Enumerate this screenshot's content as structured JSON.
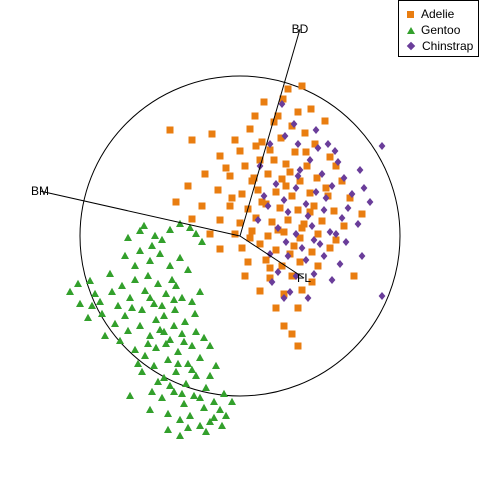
{
  "chart_data": {
    "type": "scatter",
    "title": "",
    "xlabel": "",
    "ylabel": "",
    "xlim": [
      -3.2,
      3.2
    ],
    "ylim": [
      -3.2,
      3.2
    ],
    "grid": false,
    "legend_position": "top-right",
    "unit_circle_radius": 1.6,
    "axes": [
      {
        "label": "BD",
        "x": 0.6,
        "y": 2.07
      },
      {
        "label": "BM",
        "x": -2.0,
        "y": 0.45
      },
      {
        "label": "FL",
        "x": 0.64,
        "y": -0.42
      }
    ],
    "series": [
      {
        "name": "Adelie",
        "color": "#e97d10",
        "marker": "square",
        "points": [
          [
            0.48,
            1.47
          ],
          [
            0.62,
            1.5
          ],
          [
            0.43,
            1.37
          ],
          [
            0.24,
            1.34
          ],
          [
            0.38,
            1.2
          ],
          [
            0.58,
            1.24
          ],
          [
            0.71,
            1.27
          ],
          [
            0.34,
            1.14
          ],
          [
            0.52,
            1.1
          ],
          [
            0.85,
            1.15
          ],
          [
            0.65,
            1.03
          ],
          [
            0.15,
            1.2
          ],
          [
            0.1,
            1.07
          ],
          [
            -0.05,
            0.96
          ],
          [
            0.22,
            0.94
          ],
          [
            0.41,
            0.98
          ],
          [
            -0.28,
            1.02
          ],
          [
            -0.48,
            0.96
          ],
          [
            -0.7,
            1.06
          ],
          [
            0.0,
            0.85
          ],
          [
            0.3,
            0.86
          ],
          [
            0.55,
            0.84
          ],
          [
            0.75,
            0.92
          ],
          [
            0.9,
            0.79
          ],
          [
            -0.2,
            0.8
          ],
          [
            0.05,
            0.7
          ],
          [
            0.2,
            0.76
          ],
          [
            0.46,
            0.72
          ],
          [
            0.67,
            0.7
          ],
          [
            0.96,
            0.7
          ],
          [
            -0.35,
            0.62
          ],
          [
            -0.1,
            0.6
          ],
          [
            0.12,
            0.55
          ],
          [
            0.28,
            0.62
          ],
          [
            0.42,
            0.57
          ],
          [
            0.6,
            0.55
          ],
          [
            0.77,
            0.58
          ],
          [
            1.02,
            0.55
          ],
          [
            -0.52,
            0.5
          ],
          [
            -0.22,
            0.46
          ],
          [
            0.02,
            0.42
          ],
          [
            0.18,
            0.46
          ],
          [
            0.36,
            0.44
          ],
          [
            0.52,
            0.4
          ],
          [
            0.7,
            0.43
          ],
          [
            0.88,
            0.4
          ],
          [
            1.1,
            0.38
          ],
          [
            -0.64,
            0.34
          ],
          [
            -0.38,
            0.3
          ],
          [
            -0.1,
            0.3
          ],
          [
            0.08,
            0.27
          ],
          [
            0.26,
            0.32
          ],
          [
            0.4,
            0.28
          ],
          [
            0.58,
            0.26
          ],
          [
            0.74,
            0.3
          ],
          [
            0.94,
            0.25
          ],
          [
            1.22,
            0.22
          ],
          [
            -0.48,
            0.17
          ],
          [
            -0.2,
            0.16
          ],
          [
            0.0,
            0.13
          ],
          [
            0.16,
            0.18
          ],
          [
            0.32,
            0.14
          ],
          [
            0.48,
            0.16
          ],
          [
            0.64,
            0.12
          ],
          [
            0.82,
            0.15
          ],
          [
            1.04,
            0.1
          ],
          [
            -0.3,
            0.02
          ],
          [
            -0.05,
            0.02
          ],
          [
            0.12,
            0.05
          ],
          [
            0.28,
            0.0
          ],
          [
            0.44,
            0.04
          ],
          [
            0.6,
            -0.02
          ],
          [
            0.78,
            0.02
          ],
          [
            0.96,
            -0.04
          ],
          [
            -0.2,
            -0.13
          ],
          [
            0.02,
            -0.12
          ],
          [
            0.2,
            -0.08
          ],
          [
            0.36,
            -0.14
          ],
          [
            0.54,
            -0.1
          ],
          [
            0.72,
            -0.16
          ],
          [
            0.9,
            -0.12
          ],
          [
            0.08,
            -0.26
          ],
          [
            0.26,
            -0.24
          ],
          [
            0.42,
            -0.3
          ],
          [
            0.6,
            -0.26
          ],
          [
            0.78,
            -0.3
          ],
          [
            0.05,
            -0.4
          ],
          [
            0.3,
            -0.42
          ],
          [
            0.52,
            -0.4
          ],
          [
            0.72,
            -0.46
          ],
          [
            1.14,
            -0.4
          ],
          [
            0.2,
            -0.55
          ],
          [
            0.44,
            -0.58
          ],
          [
            0.62,
            -0.54
          ],
          [
            0.36,
            -0.72
          ],
          [
            0.58,
            -0.72
          ],
          [
            0.44,
            -0.9
          ],
          [
            0.58,
            -1.1
          ],
          [
            0.52,
            -0.98
          ],
          [
            -0.08,
            0.38
          ],
          [
            0.14,
            0.58
          ],
          [
            0.34,
            0.76
          ],
          [
            0.5,
            0.64
          ],
          [
            0.66,
            0.84
          ],
          [
            0.22,
            0.34
          ],
          [
            0.46,
            0.5
          ],
          [
            0.7,
            0.24
          ],
          [
            0.86,
            0.48
          ],
          [
            0.1,
            -0.02
          ],
          [
            0.38,
            0.06
          ],
          [
            0.62,
            0.08
          ],
          [
            0.3,
            -0.32
          ],
          [
            0.5,
            -0.18
          ],
          [
            0.16,
            0.9
          ],
          [
            -0.14,
            0.68
          ]
        ]
      },
      {
        "name": "Gentoo",
        "color": "#33a02c",
        "marker": "triangle",
        "points": [
          [
            -1.12,
            -0.02
          ],
          [
            -1.0,
            0.05
          ],
          [
            -0.85,
            0.0
          ],
          [
            -0.6,
            0.12
          ],
          [
            -0.5,
            0.08
          ],
          [
            -0.44,
            0.02
          ],
          [
            -0.38,
            -0.06
          ],
          [
            -1.15,
            -0.2
          ],
          [
            -1.0,
            -0.15
          ],
          [
            -0.9,
            -0.25
          ],
          [
            -0.8,
            -0.18
          ],
          [
            -0.7,
            -0.3
          ],
          [
            -0.6,
            -0.22
          ],
          [
            -0.52,
            -0.34
          ],
          [
            -1.5,
            -0.45
          ],
          [
            -1.3,
            -0.38
          ],
          [
            -1.18,
            -0.5
          ],
          [
            -1.05,
            -0.44
          ],
          [
            -0.95,
            -0.55
          ],
          [
            -0.82,
            -0.48
          ],
          [
            -0.74,
            -0.58
          ],
          [
            -0.64,
            -0.5
          ],
          [
            -1.4,
            -0.66
          ],
          [
            -1.22,
            -0.7
          ],
          [
            -1.1,
            -0.62
          ],
          [
            -0.98,
            -0.74
          ],
          [
            -0.86,
            -0.68
          ],
          [
            -0.76,
            -0.8
          ],
          [
            -0.65,
            -0.74
          ],
          [
            -0.55,
            -0.86
          ],
          [
            -0.45,
            -0.78
          ],
          [
            -1.25,
            -0.88
          ],
          [
            -1.12,
            -0.95
          ],
          [
            -1.0,
            -0.9
          ],
          [
            -0.9,
            -1.0
          ],
          [
            -0.8,
            -0.94
          ],
          [
            -0.7,
            -1.04
          ],
          [
            -0.58,
            -0.98
          ],
          [
            -0.48,
            -1.1
          ],
          [
            -0.36,
            -1.02
          ],
          [
            -1.05,
            -1.14
          ],
          [
            -0.95,
            -1.2
          ],
          [
            -0.84,
            -1.12
          ],
          [
            -0.72,
            -1.24
          ],
          [
            -0.62,
            -1.16
          ],
          [
            -0.52,
            -1.28
          ],
          [
            -0.4,
            -1.22
          ],
          [
            -0.3,
            -1.1
          ],
          [
            -0.98,
            -1.36
          ],
          [
            -0.86,
            -1.3
          ],
          [
            -0.76,
            -1.42
          ],
          [
            -0.64,
            -1.36
          ],
          [
            -0.54,
            -1.48
          ],
          [
            -0.44,
            -1.4
          ],
          [
            -0.34,
            -1.52
          ],
          [
            -0.24,
            -1.3
          ],
          [
            -0.88,
            -1.56
          ],
          [
            -0.78,
            -1.62
          ],
          [
            -0.66,
            -1.56
          ],
          [
            -0.56,
            -1.68
          ],
          [
            -0.46,
            -1.6
          ],
          [
            -0.36,
            -1.72
          ],
          [
            -0.26,
            -1.66
          ],
          [
            -0.16,
            -1.58
          ],
          [
            -0.72,
            -1.78
          ],
          [
            -0.6,
            -1.84
          ],
          [
            -0.5,
            -1.8
          ],
          [
            -0.4,
            -1.9
          ],
          [
            -0.3,
            -1.86
          ],
          [
            -1.35,
            -1.0
          ],
          [
            -1.05,
            -0.3
          ],
          [
            -0.92,
            -0.4
          ],
          [
            -0.68,
            -0.44
          ],
          [
            -0.58,
            -0.62
          ],
          [
            -0.48,
            -0.66
          ],
          [
            -1.28,
            -0.56
          ],
          [
            -1.15,
            -0.8
          ],
          [
            -1.45,
            -0.58
          ],
          [
            -0.4,
            -0.56
          ],
          [
            -0.84,
            -0.84
          ],
          [
            -0.76,
            -0.96
          ],
          [
            -0.66,
            -0.9
          ],
          [
            -0.56,
            -1.06
          ],
          [
            -0.92,
            -1.08
          ],
          [
            -0.74,
            -1.08
          ],
          [
            -0.44,
            -0.96
          ],
          [
            -0.62,
            -1.28
          ],
          [
            -0.48,
            -1.34
          ],
          [
            -0.3,
            -1.4
          ],
          [
            -0.82,
            -1.46
          ],
          [
            -0.7,
            -1.5
          ],
          [
            -0.58,
            -1.58
          ],
          [
            -0.4,
            -1.62
          ],
          [
            -0.2,
            -1.74
          ],
          [
            -0.52,
            -1.92
          ],
          [
            -0.34,
            -1.96
          ],
          [
            -0.14,
            -1.8
          ],
          [
            -1.02,
            -1.28
          ],
          [
            -1.2,
            -1.05
          ],
          [
            -1.08,
            -0.72
          ],
          [
            -0.9,
            -0.62
          ],
          [
            -0.78,
            -0.7
          ],
          [
            -0.66,
            -0.64
          ],
          [
            -1.62,
            -0.48
          ],
          [
            -1.7,
            -0.56
          ],
          [
            -0.96,
            0.1
          ],
          [
            -0.88,
            -0.1
          ],
          [
            -0.78,
            -0.04
          ],
          [
            -0.7,
            0.06
          ],
          [
            -1.6,
            -0.68
          ],
          [
            -1.52,
            -0.82
          ],
          [
            -1.38,
            -0.78
          ],
          [
            -1.48,
            -0.7
          ],
          [
            -0.9,
            -1.74
          ],
          [
            -1.1,
            -1.6
          ],
          [
            -0.26,
            -1.82
          ],
          [
            -0.18,
            -1.9
          ],
          [
            -0.08,
            -1.66
          ],
          [
            -0.6,
            -2.0
          ],
          [
            -0.72,
            -1.94
          ]
        ]
      },
      {
        "name": "Chinstrap",
        "color": "#6a3d9a",
        "marker": "diamond",
        "points": [
          [
            0.42,
            1.32
          ],
          [
            0.45,
            1.0
          ],
          [
            0.3,
            0.92
          ],
          [
            0.78,
            0.88
          ],
          [
            0.95,
            0.85
          ],
          [
            1.42,
            0.9
          ],
          [
            0.2,
            0.7
          ],
          [
            0.6,
            0.66
          ],
          [
            0.82,
            0.62
          ],
          [
            1.04,
            0.58
          ],
          [
            1.2,
            0.66
          ],
          [
            0.36,
            0.52
          ],
          [
            0.56,
            0.48
          ],
          [
            0.76,
            0.44
          ],
          [
            0.92,
            0.5
          ],
          [
            1.12,
            0.42
          ],
          [
            1.3,
            0.34
          ],
          [
            0.28,
            0.3
          ],
          [
            0.48,
            0.24
          ],
          [
            0.68,
            0.2
          ],
          [
            0.84,
            0.26
          ],
          [
            1.02,
            0.18
          ],
          [
            1.18,
            0.12
          ],
          [
            0.38,
            0.08
          ],
          [
            0.56,
            0.02
          ],
          [
            0.74,
            -0.04
          ],
          [
            0.9,
            0.04
          ],
          [
            1.06,
            -0.06
          ],
          [
            0.3,
            -0.18
          ],
          [
            0.48,
            -0.2
          ],
          [
            0.66,
            -0.24
          ],
          [
            0.84,
            -0.2
          ],
          [
            1.0,
            -0.28
          ],
          [
            0.38,
            -0.36
          ],
          [
            0.56,
            -0.4
          ],
          [
            0.74,
            -0.38
          ],
          [
            0.92,
            -0.44
          ],
          [
            0.5,
            -0.56
          ],
          [
            0.68,
            -0.62
          ],
          [
            1.42,
            -0.6
          ],
          [
            0.58,
            0.92
          ],
          [
            0.7,
            0.76
          ],
          [
            0.98,
            0.74
          ],
          [
            0.44,
            0.36
          ],
          [
            0.66,
            0.32
          ],
          [
            0.86,
            0.38
          ],
          [
            1.08,
            0.28
          ],
          [
            0.46,
            -0.06
          ],
          [
            0.62,
            -0.12
          ],
          [
            0.8,
            -0.08
          ],
          [
            0.32,
            -0.46
          ],
          [
            0.44,
            -0.62
          ],
          [
            0.18,
            0.16
          ],
          [
            0.24,
            0.4
          ],
          [
            1.24,
            0.48
          ],
          [
            1.22,
            -0.2
          ],
          [
            0.76,
            1.06
          ],
          [
            0.54,
            1.12
          ],
          [
            0.96,
            0.02
          ],
          [
            0.72,
            0.1
          ],
          [
            0.58,
            0.6
          ],
          [
            0.88,
            0.92
          ]
        ]
      }
    ]
  }
}
